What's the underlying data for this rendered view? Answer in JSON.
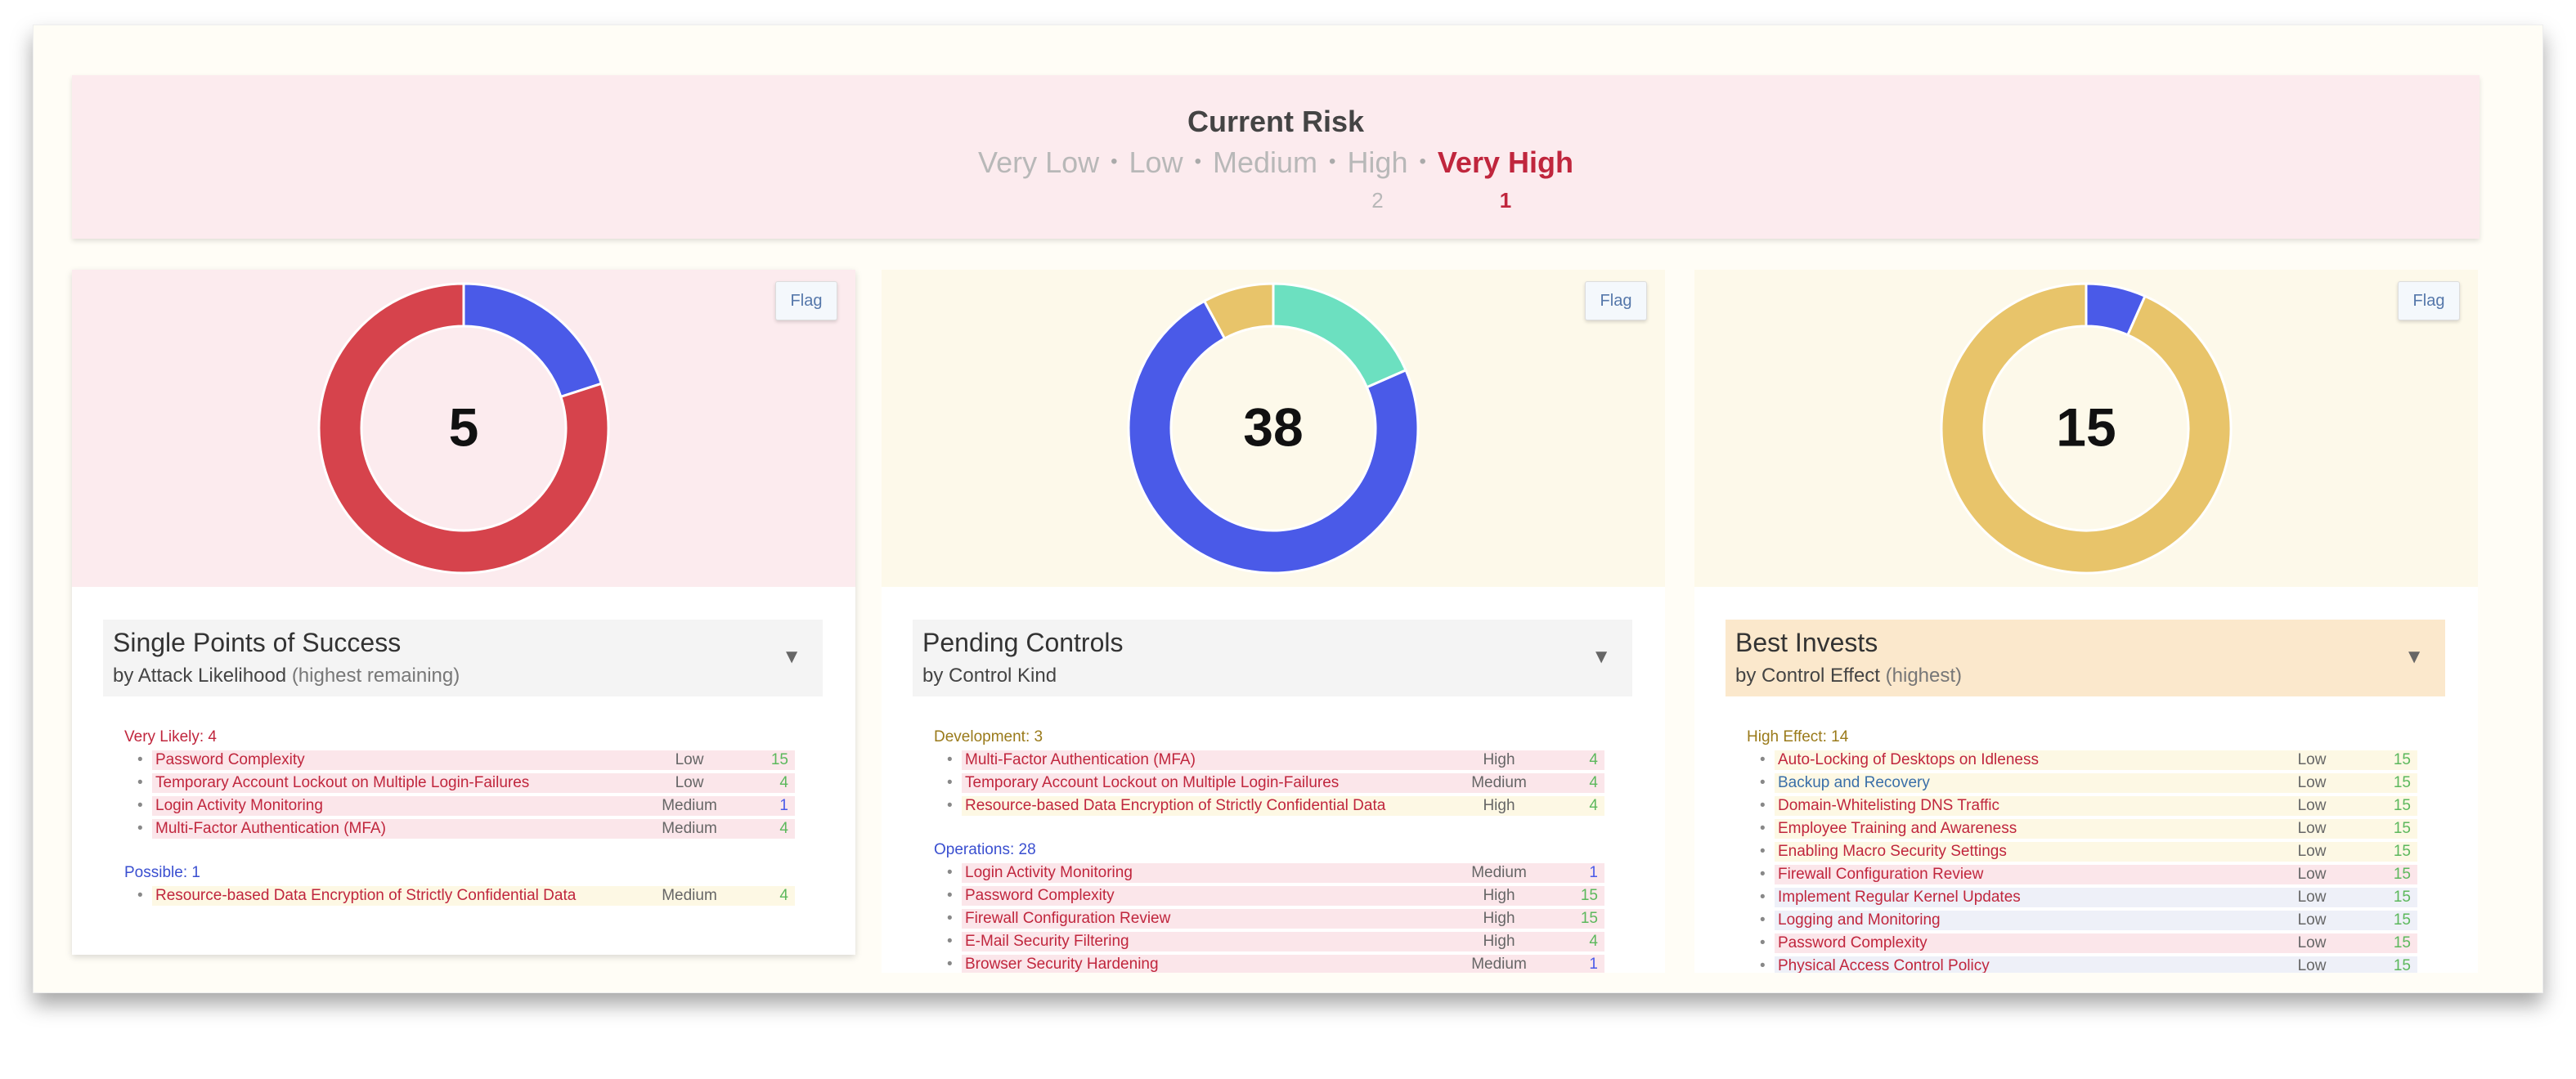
{
  "header": {
    "title": "Current Risk",
    "levels": [
      {
        "label": "Very Low",
        "count": null,
        "color": "#b8b8b8"
      },
      {
        "label": "Low",
        "count": null,
        "color": "#b8b8b8"
      },
      {
        "label": "Medium",
        "count": null,
        "color": "#b8b8b8"
      },
      {
        "label": "High",
        "count": 2,
        "color": "#b8b8b8"
      },
      {
        "label": "Very High",
        "count": 1,
        "color": "#c0263d"
      }
    ]
  },
  "panels": [
    {
      "bg": "#fcebee",
      "flag": "Flag",
      "title": "Single Points of Success",
      "subtitle": "by Attack Likelihood",
      "note": "(highest remaining)",
      "head_bg": "#f4f4f4",
      "donut": {
        "center": 5,
        "segments": [
          {
            "value": 1,
            "color": "#4a5ae8"
          },
          {
            "value": 4,
            "color": "#d6434c"
          }
        ]
      },
      "groups": [
        {
          "label": "Very Likely: 4",
          "color": "#c0263d",
          "items": [
            {
              "name": "Password Complexity",
              "level": "Low",
              "value": 15,
              "bg": "#fbe6ea",
              "fg": "#c0263d",
              "vc": "#5cb85c"
            },
            {
              "name": "Temporary Account Lockout on Multiple Login-Failures",
              "level": "Low",
              "value": 4,
              "bg": "#fbe6ea",
              "fg": "#c0263d",
              "vc": "#5cb85c"
            },
            {
              "name": "Login Activity Monitoring",
              "level": "Medium",
              "value": 1,
              "bg": "#fbe6ea",
              "fg": "#c0263d",
              "vc": "#4a5ae8"
            },
            {
              "name": "Multi-Factor Authentication (MFA)",
              "level": "Medium",
              "value": 4,
              "bg": "#fbe6ea",
              "fg": "#c0263d",
              "vc": "#5cb85c"
            }
          ]
        },
        {
          "label": "Possible: 1",
          "color": "#3a4fd0",
          "items": [
            {
              "name": "Resource-based Data Encryption of Strictly Confidential Data",
              "level": "Medium",
              "value": 4,
              "bg": "#fdf8e4",
              "fg": "#c0263d",
              "vc": "#5cb85c"
            }
          ]
        }
      ]
    },
    {
      "bg": "#fdf9ea",
      "flag": "Flag",
      "title": "Pending Controls",
      "subtitle": "by Control Kind",
      "note": null,
      "head_bg": "#f4f4f4",
      "donut": {
        "center": 38,
        "segments": [
          {
            "value": 7,
            "color": "#6ce0c0"
          },
          {
            "value": 28,
            "color": "#4a5ae8"
          },
          {
            "value": 3,
            "color": "#e8c46a"
          }
        ]
      },
      "groups": [
        {
          "label": "Development: 3",
          "color": "#9a7a1a",
          "items": [
            {
              "name": "Multi-Factor Authentication (MFA)",
              "level": "High",
              "value": 4,
              "bg": "#fbe6ea",
              "fg": "#c0263d",
              "vc": "#5cb85c"
            },
            {
              "name": "Temporary Account Lockout on Multiple Login-Failures",
              "level": "Medium",
              "value": 4,
              "bg": "#fbe6ea",
              "fg": "#c0263d",
              "vc": "#5cb85c"
            },
            {
              "name": "Resource-based Data Encryption of Strictly Confidential Data",
              "level": "High",
              "value": 4,
              "bg": "#fdf8e4",
              "fg": "#c0263d",
              "vc": "#5cb85c"
            }
          ]
        },
        {
          "label": "Operations: 28",
          "color": "#3a4fd0",
          "items": [
            {
              "name": "Login Activity Monitoring",
              "level": "Medium",
              "value": 1,
              "bg": "#fbe6ea",
              "fg": "#c0263d",
              "vc": "#4a5ae8"
            },
            {
              "name": "Password Complexity",
              "level": "High",
              "value": 15,
              "bg": "#fbe6ea",
              "fg": "#c0263d",
              "vc": "#5cb85c"
            },
            {
              "name": "Firewall Configuration Review",
              "level": "High",
              "value": 15,
              "bg": "#fbe6ea",
              "fg": "#c0263d",
              "vc": "#5cb85c"
            },
            {
              "name": "E-Mail Security Filtering",
              "level": "High",
              "value": 4,
              "bg": "#fbe6ea",
              "fg": "#c0263d",
              "vc": "#5cb85c"
            },
            {
              "name": "Browser Security Hardening",
              "level": "Medium",
              "value": 1,
              "bg": "#fbe6ea",
              "fg": "#c0263d",
              "vc": "#4a5ae8"
            }
          ]
        }
      ]
    },
    {
      "bg": "#fdf9ea",
      "flag": "Flag",
      "title": "Best Invests",
      "subtitle": "by Control Effect",
      "note": "(highest)",
      "head_bg": "#fbe8cc",
      "donut": {
        "center": 15,
        "segments": [
          {
            "value": 1,
            "color": "#4a5ae8"
          },
          {
            "value": 14,
            "color": "#e8c46a"
          }
        ]
      },
      "groups": [
        {
          "label": "High Effect: 14",
          "color": "#9a7a1a",
          "items": [
            {
              "name": "Auto-Locking of Desktops on Idleness",
              "level": "Low",
              "value": 15,
              "bg": "#fdf8e4",
              "fg": "#c0263d",
              "vc": "#5cb85c"
            },
            {
              "name": "Backup and Recovery",
              "level": "Low",
              "value": 15,
              "bg": "#fdf8e4",
              "fg": "#3a6fa8",
              "vc": "#5cb85c"
            },
            {
              "name": "Domain-Whitelisting DNS Traffic",
              "level": "Low",
              "value": 15,
              "bg": "#fdf8e4",
              "fg": "#c0263d",
              "vc": "#5cb85c"
            },
            {
              "name": "Employee Training and Awareness",
              "level": "Low",
              "value": 15,
              "bg": "#fdf8e4",
              "fg": "#c0263d",
              "vc": "#5cb85c"
            },
            {
              "name": "Enabling Macro Security Settings",
              "level": "Low",
              "value": 15,
              "bg": "#fdf8e4",
              "fg": "#c0263d",
              "vc": "#5cb85c"
            },
            {
              "name": "Firewall Configuration Review",
              "level": "Low",
              "value": 15,
              "bg": "#fbe6ea",
              "fg": "#c0263d",
              "vc": "#5cb85c"
            },
            {
              "name": "Implement Regular Kernel Updates",
              "level": "Low",
              "value": 15,
              "bg": "#eef0f8",
              "fg": "#c0263d",
              "vc": "#5cb85c"
            },
            {
              "name": "Logging and Monitoring",
              "level": "Low",
              "value": 15,
              "bg": "#eef0f8",
              "fg": "#c0263d",
              "vc": "#5cb85c"
            },
            {
              "name": "Password Complexity",
              "level": "Low",
              "value": 15,
              "bg": "#fbe6ea",
              "fg": "#c0263d",
              "vc": "#5cb85c"
            },
            {
              "name": "Physical Access Control Policy",
              "level": "Low",
              "value": 15,
              "bg": "#eef0f8",
              "fg": "#c0263d",
              "vc": "#5cb85c"
            }
          ]
        }
      ]
    }
  ]
}
